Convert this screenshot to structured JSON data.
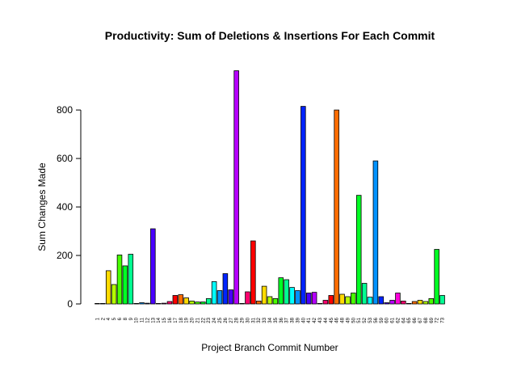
{
  "chart_data": {
    "type": "bar",
    "title": "Productivity: Sum of Deletions & Insertions For Each Commit",
    "x_label": "Project Branch Commit Number",
    "y_label": "Sum Changes Made",
    "categories": [
      "1",
      "2",
      "4",
      "5",
      "6",
      "8",
      "9",
      "10",
      "11",
      "12",
      "13",
      "14",
      "15",
      "16",
      "17",
      "18",
      "19",
      "20",
      "21",
      "22",
      "23",
      "24",
      "25",
      "26",
      "27",
      "28",
      "29",
      "30",
      "31",
      "32",
      "33",
      "34",
      "35",
      "36",
      "37",
      "38",
      "39",
      "40",
      "41",
      "42",
      "43",
      "44",
      "45",
      "46",
      "48",
      "49",
      "50",
      "51",
      "52",
      "53",
      "56",
      "59",
      "60",
      "61",
      "62",
      "64",
      "65",
      "66",
      "67",
      "68",
      "69",
      "72",
      "73"
    ],
    "values": [
      2,
      2,
      137,
      80,
      202,
      157,
      205,
      2,
      5,
      3,
      310,
      2,
      3,
      10,
      35,
      38,
      25,
      12,
      8,
      8,
      22,
      92,
      55,
      125,
      58,
      962,
      2,
      50,
      260,
      12,
      73,
      30,
      22,
      108,
      100,
      68,
      55,
      815,
      45,
      48,
      2,
      15,
      35,
      800,
      40,
      30,
      45,
      448,
      85,
      28,
      590,
      30,
      5,
      15,
      45,
      12,
      2,
      10,
      15,
      10,
      22,
      225,
      35
    ],
    "colors": [
      "#FF0000",
      "#FF6D00",
      "#FFDB00",
      "#B6FF00",
      "#49FF00",
      "#00FF24",
      "#00FF92",
      "#00FFFF",
      "#0092FF",
      "#0024FF",
      "#4900FF",
      "#B600FF",
      "#FF00DB",
      "#FF006D"
    ],
    "ylim": [
      0,
      967
    ],
    "yticks": [
      0,
      200,
      400,
      600,
      800
    ]
  }
}
